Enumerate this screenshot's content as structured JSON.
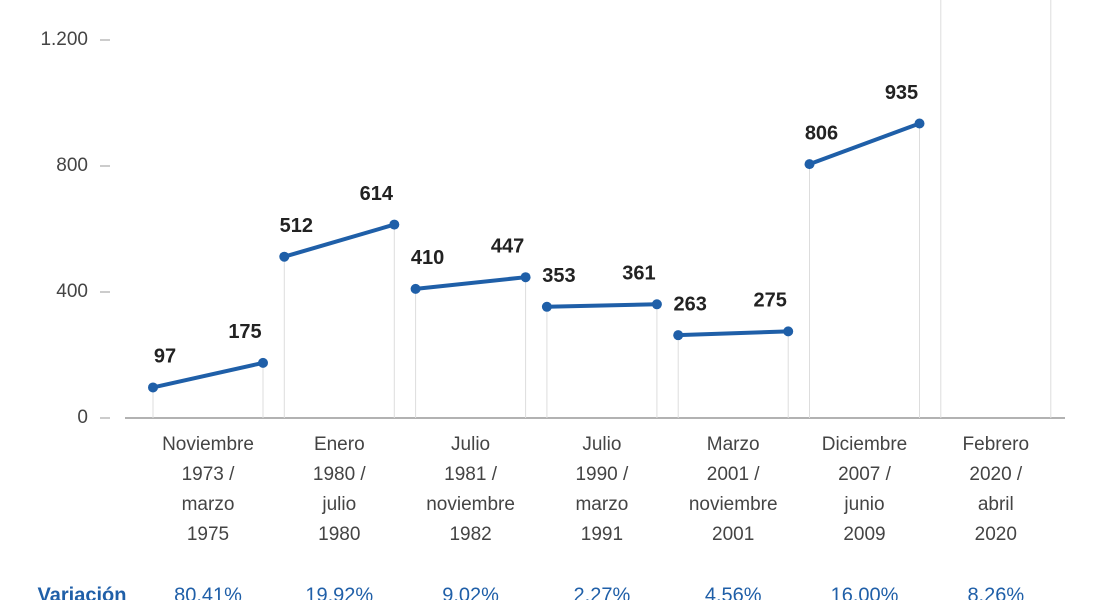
{
  "chart_data": {
    "type": "range-line",
    "categories": [
      "Noviembre\n1973 /\nmarzo\n1975",
      "Enero\n1980 /\njulio\n1980",
      "Julio\n1981 /\nnoviembre\n1982",
      "Julio\n1990 /\nmarzo\n1991",
      "Marzo\n2001 /\nnoviembre\n2001",
      "Diciembre\n2007 /\njunio\n2009",
      "Febrero\n2020 /\nabril\n2020"
    ],
    "series": [
      {
        "color": "#1f5fa8",
        "values": [
          97,
          512,
          410,
          353,
          263,
          806,
          null
        ]
      },
      {
        "color": "#1f5fa8",
        "values": [
          175,
          614,
          447,
          361,
          275,
          935,
          null
        ]
      }
    ],
    "ylim": [
      0,
      1327
    ],
    "yticks": [
      0,
      400,
      800,
      {
        "value": 1200,
        "label": "1.200"
      }
    ],
    "variation": {
      "label": "Variación",
      "values": [
        80.41,
        19.92,
        9.02,
        2.27,
        4.56,
        16.0,
        8.26
      ],
      "value_labels": [
        "80.41%",
        "19.92%",
        "9.02%",
        "2.27%",
        "4.56%",
        "16.00%",
        "8.26%"
      ],
      "color": "#1f5fa8"
    }
  }
}
